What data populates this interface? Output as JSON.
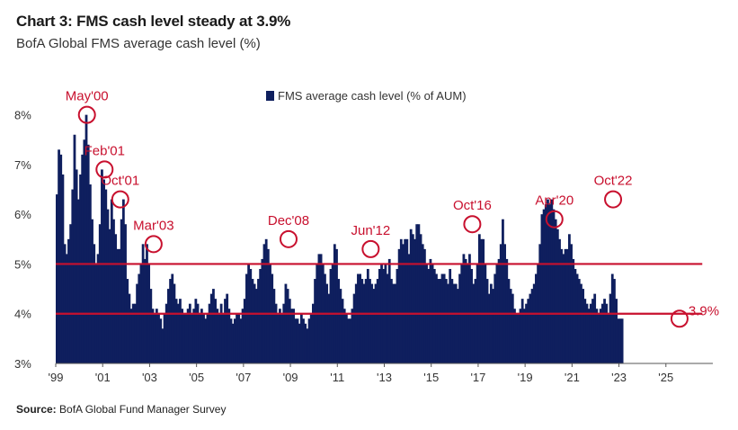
{
  "header": {
    "title": "Chart 3: FMS cash level steady at 3.9%",
    "subtitle": "BofA Global FMS average cash level (%)"
  },
  "footer": {
    "source_label": "Source:",
    "source_text": "BofA Global Fund Manager Survey"
  },
  "colors": {
    "bar": "#0f1f5e",
    "reference_line": "#c8102e",
    "annotation": "#c8102e"
  },
  "chart_data": {
    "type": "bar",
    "title": "Chart 3: FMS cash level steady at 3.9%",
    "subtitle": "BofA Global FMS average cash level (%)",
    "xlabel": "",
    "ylabel": "",
    "ylim": [
      3,
      8.5
    ],
    "y_ticks": [
      "3%",
      "4%",
      "5%",
      "6%",
      "7%",
      "8%"
    ],
    "y_tick_values": [
      3,
      4,
      5,
      6,
      7,
      8
    ],
    "x_tick_labels": [
      "'99",
      "'01",
      "'03",
      "'05",
      "'07",
      "'09",
      "'11",
      "'13",
      "'15",
      "'17",
      "'19",
      "'21",
      "'23",
      "'25"
    ],
    "x_tick_years": [
      1999,
      2001,
      2003,
      2005,
      2007,
      2009,
      2011,
      2013,
      2015,
      2017,
      2019,
      2021,
      2023,
      2025
    ],
    "x_range": [
      1999.0,
      2027.0
    ],
    "legend": "top-center",
    "grid": false,
    "series": [
      {
        "name": "FMS average cash level (% of AUM)",
        "start": "1999-01",
        "frequency": "monthly",
        "values": [
          6.4,
          7.3,
          7.2,
          6.8,
          5.4,
          5.2,
          5.5,
          5.8,
          6.5,
          7.6,
          6.9,
          6.3,
          6.8,
          7.2,
          7.5,
          8.0,
          7.4,
          6.6,
          5.9,
          5.4,
          5.0,
          5.2,
          5.8,
          6.9,
          6.7,
          6.5,
          6.1,
          5.7,
          6.3,
          5.9,
          5.6,
          5.3,
          5.3,
          5.9,
          6.3,
          5.8,
          4.7,
          4.4,
          4.1,
          4.2,
          4.2,
          4.6,
          4.8,
          5.0,
          5.4,
          5.1,
          5.4,
          5.0,
          4.5,
          4.1,
          4.0,
          4.1,
          4.0,
          3.9,
          3.7,
          4.0,
          4.2,
          4.5,
          4.7,
          4.8,
          4.6,
          4.3,
          4.2,
          4.3,
          4.1,
          4.0,
          4.0,
          4.1,
          4.2,
          4.0,
          4.1,
          4.3,
          4.2,
          4.0,
          4.1,
          4.0,
          3.9,
          4.0,
          4.2,
          4.4,
          4.5,
          4.3,
          4.1,
          4.0,
          4.2,
          4.0,
          4.3,
          4.4,
          4.1,
          3.9,
          3.8,
          3.9,
          4.0,
          4.0,
          3.9,
          4.1,
          4.3,
          4.8,
          5.0,
          4.9,
          4.7,
          4.6,
          4.5,
          4.7,
          4.9,
          5.1,
          5.4,
          5.5,
          5.3,
          5.0,
          4.8,
          4.5,
          4.2,
          4.0,
          4.1,
          4.0,
          4.2,
          4.6,
          4.5,
          4.3,
          4.1,
          4.1,
          3.9,
          3.9,
          3.8,
          4.0,
          3.9,
          3.8,
          3.7,
          3.9,
          4.0,
          4.2,
          4.7,
          5.0,
          5.2,
          5.2,
          5.0,
          4.8,
          4.6,
          4.4,
          4.9,
          5.0,
          5.4,
          5.3,
          4.7,
          4.5,
          4.3,
          4.1,
          4.0,
          3.9,
          3.9,
          4.1,
          4.4,
          4.6,
          4.8,
          4.8,
          4.7,
          4.6,
          4.7,
          4.9,
          4.7,
          4.6,
          4.5,
          4.6,
          4.7,
          4.9,
          5.0,
          4.9,
          5.0,
          4.8,
          5.1,
          4.7,
          4.6,
          4.6,
          4.9,
          5.3,
          5.5,
          5.4,
          5.5,
          5.5,
          5.2,
          5.7,
          5.6,
          5.5,
          5.8,
          5.8,
          5.6,
          5.4,
          5.3,
          5.0,
          4.9,
          5.1,
          5.0,
          4.9,
          4.8,
          4.7,
          4.7,
          4.8,
          4.8,
          4.7,
          4.6,
          4.9,
          4.7,
          4.6,
          4.6,
          4.5,
          4.8,
          5.0,
          5.2,
          5.1,
          5.0,
          5.2,
          4.9,
          4.6,
          4.7,
          5.0,
          5.6,
          5.5,
          5.5,
          5.0,
          4.7,
          4.4,
          4.6,
          4.5,
          4.8,
          5.0,
          5.1,
          5.4,
          5.9,
          5.4,
          5.1,
          4.7,
          4.5,
          4.4,
          4.1,
          4.0,
          4.0,
          4.1,
          4.3,
          4.1,
          4.2,
          4.3,
          4.4,
          4.5,
          4.6,
          4.8,
          5.0,
          5.4,
          6.0,
          6.1,
          6.2,
          6.3,
          6.2,
          6.3,
          6.1,
          5.9,
          5.7,
          5.5,
          5.3,
          5.2,
          5.3,
          5.3,
          5.6,
          5.4,
          5.1,
          4.9,
          4.8,
          4.7,
          4.6,
          4.5,
          4.3,
          4.2,
          4.1,
          4.2,
          4.3,
          4.4,
          4.1,
          4.0,
          4.1,
          4.2,
          4.3,
          4.2,
          4.0,
          4.4,
          4.8,
          4.7,
          4.3,
          3.9,
          3.9,
          3.9
        ]
      }
    ],
    "reference_lines": [
      {
        "value": 5.0
      },
      {
        "value": 4.0
      }
    ],
    "annotations": [
      {
        "label": "May'00",
        "date": 2000.33,
        "value": 8.0
      },
      {
        "label": "Feb'01",
        "date": 2001.08,
        "value": 6.9
      },
      {
        "label": "Oct'01",
        "date": 2001.75,
        "value": 6.3
      },
      {
        "label": "Mar'03",
        "date": 2003.17,
        "value": 5.4
      },
      {
        "label": "Dec'08",
        "date": 2008.92,
        "value": 5.5
      },
      {
        "label": "Jun'12",
        "date": 2012.42,
        "value": 5.3
      },
      {
        "label": "Oct'16",
        "date": 2016.75,
        "value": 5.8
      },
      {
        "label": "Apr'20",
        "date": 2020.25,
        "value": 5.9
      },
      {
        "label": "Oct'22",
        "date": 2022.75,
        "value": 6.3
      },
      {
        "label": "3.9%",
        "date": 2025.58,
        "value": 3.9
      }
    ]
  }
}
